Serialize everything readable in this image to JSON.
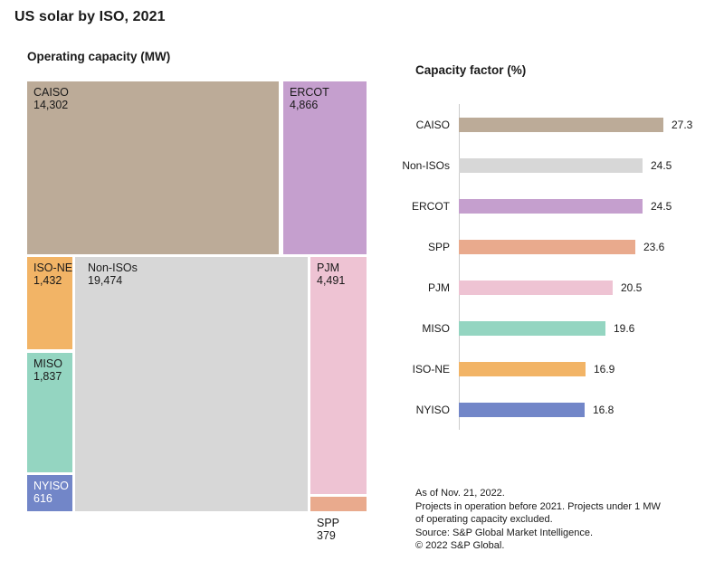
{
  "page": {
    "title": "US solar by ISO, 2021"
  },
  "notes": {
    "lines": [
      "As of Nov. 21, 2022.",
      "Projects in operation before 2021. Projects under 1 MW",
      "of operating capacity excluded.",
      "Source: S&P Global Market Intelligence.",
      "© 2022 S&P Global."
    ]
  },
  "chart_data": [
    {
      "type": "treemap",
      "title": "Operating capacity (MW)",
      "unit": "MW",
      "items": [
        {
          "label": "CAISO",
          "value": 14302,
          "value_text": "14,302",
          "color": "#bcab98",
          "text_color": "#1a1a1a"
        },
        {
          "label": "ERCOT",
          "value": 4866,
          "value_text": "4,866",
          "color": "#c59fce",
          "text_color": "#1a1a1a"
        },
        {
          "label": "ISO-NE",
          "value": 1432,
          "value_text": "1,432",
          "color": "#f2b466",
          "text_color": "#1a1a1a"
        },
        {
          "label": "MISO",
          "value": 1837,
          "value_text": "1,837",
          "color": "#94d5c1",
          "text_color": "#1a1a1a"
        },
        {
          "label": "NYISO",
          "value": 616,
          "value_text": "616",
          "color": "#7286c8",
          "text_color": "#ffffff"
        },
        {
          "label": "Non-ISOs",
          "value": 19474,
          "value_text": "19,474",
          "color": "#d7d7d7",
          "text_color": "#1a1a1a"
        },
        {
          "label": "PJM",
          "value": 4491,
          "value_text": "4,491",
          "color": "#eec3d3",
          "text_color": "#1a1a1a"
        },
        {
          "label": "SPP",
          "value": 379,
          "value_text": "379",
          "color": "#e9aa8d",
          "text_color": "#1a1a1a"
        }
      ]
    },
    {
      "type": "bar",
      "orientation": "horizontal",
      "title": "Capacity factor (%)",
      "categories": [
        "CAISO",
        "Non-ISOs",
        "ERCOT",
        "SPP",
        "PJM",
        "MISO",
        "ISO-NE",
        "NYISO"
      ],
      "values": [
        27.3,
        24.5,
        24.5,
        23.6,
        20.5,
        19.6,
        16.9,
        16.8
      ],
      "colors": [
        "#bcab98",
        "#d7d7d7",
        "#c59fce",
        "#e9aa8d",
        "#eec3d3",
        "#94d5c1",
        "#f2b466",
        "#7286c8"
      ],
      "xlim": [
        0,
        30
      ],
      "grid": false,
      "legend": false,
      "value_labels": true
    }
  ]
}
